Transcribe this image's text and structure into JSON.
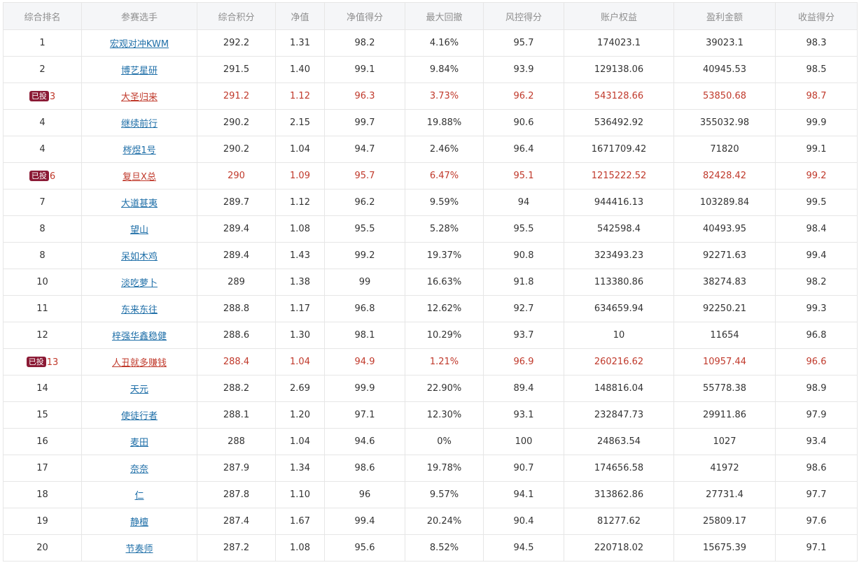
{
  "headers": [
    "综合排名",
    "参赛选手",
    "综合积分",
    "净值",
    "净值得分",
    "最大回撤",
    "风控得分",
    "账户权益",
    "盈利金额",
    "收益得分"
  ],
  "rows": [
    {
      "rank": "1",
      "badge": "",
      "player": "宏观对冲KWM",
      "score": "292.2",
      "nav": "1.31",
      "nav_score": "98.2",
      "drawdown": "4.16%",
      "risk_score": "95.7",
      "equity": "174023.1",
      "profit": "39023.1",
      "return_score": "98.3",
      "highlight": false
    },
    {
      "rank": "2",
      "badge": "",
      "player": "博艺星研",
      "score": "291.5",
      "nav": "1.40",
      "nav_score": "99.1",
      "drawdown": "9.84%",
      "risk_score": "93.9",
      "equity": "129138.06",
      "profit": "40945.53",
      "return_score": "98.5",
      "highlight": false
    },
    {
      "rank": "3",
      "badge": "已投",
      "player": "大圣归来",
      "score": "291.2",
      "nav": "1.12",
      "nav_score": "96.3",
      "drawdown": "3.73%",
      "risk_score": "96.2",
      "equity": "543128.66",
      "profit": "53850.68",
      "return_score": "98.7",
      "highlight": true
    },
    {
      "rank": "4",
      "badge": "",
      "player": "继续前行",
      "score": "290.2",
      "nav": "2.15",
      "nav_score": "99.7",
      "drawdown": "19.88%",
      "risk_score": "90.6",
      "equity": "536492.92",
      "profit": "355032.98",
      "return_score": "99.9",
      "highlight": false
    },
    {
      "rank": "4",
      "badge": "",
      "player": "梣煜1号",
      "score": "290.2",
      "nav": "1.04",
      "nav_score": "94.7",
      "drawdown": "2.46%",
      "risk_score": "96.4",
      "equity": "1671709.42",
      "profit": "71820",
      "return_score": "99.1",
      "highlight": false
    },
    {
      "rank": "6",
      "badge": "已投",
      "player": "复旦X总",
      "score": "290",
      "nav": "1.09",
      "nav_score": "95.7",
      "drawdown": "6.47%",
      "risk_score": "95.1",
      "equity": "1215222.52",
      "profit": "82428.42",
      "return_score": "99.2",
      "highlight": true
    },
    {
      "rank": "7",
      "badge": "",
      "player": "大道甚夷",
      "score": "289.7",
      "nav": "1.12",
      "nav_score": "96.2",
      "drawdown": "9.59%",
      "risk_score": "94",
      "equity": "944416.13",
      "profit": "103289.84",
      "return_score": "99.5",
      "highlight": false
    },
    {
      "rank": "8",
      "badge": "",
      "player": "望山",
      "score": "289.4",
      "nav": "1.08",
      "nav_score": "95.5",
      "drawdown": "5.28%",
      "risk_score": "95.5",
      "equity": "542598.4",
      "profit": "40493.95",
      "return_score": "98.4",
      "highlight": false
    },
    {
      "rank": "8",
      "badge": "",
      "player": "呆如木鸡",
      "score": "289.4",
      "nav": "1.43",
      "nav_score": "99.2",
      "drawdown": "19.37%",
      "risk_score": "90.8",
      "equity": "323493.23",
      "profit": "92271.63",
      "return_score": "99.4",
      "highlight": false
    },
    {
      "rank": "10",
      "badge": "",
      "player": "淡吃萝卜",
      "score": "289",
      "nav": "1.38",
      "nav_score": "99",
      "drawdown": "16.63%",
      "risk_score": "91.8",
      "equity": "113380.86",
      "profit": "38274.83",
      "return_score": "98.2",
      "highlight": false
    },
    {
      "rank": "11",
      "badge": "",
      "player": "东来东往",
      "score": "288.8",
      "nav": "1.17",
      "nav_score": "96.8",
      "drawdown": "12.62%",
      "risk_score": "92.7",
      "equity": "634659.94",
      "profit": "92250.21",
      "return_score": "99.3",
      "highlight": false
    },
    {
      "rank": "12",
      "badge": "",
      "player": "梓强华鑫稳健",
      "score": "288.6",
      "nav": "1.30",
      "nav_score": "98.1",
      "drawdown": "10.29%",
      "risk_score": "93.7",
      "equity": "10",
      "profit": "11654",
      "return_score": "96.8",
      "highlight": false
    },
    {
      "rank": "13",
      "badge": "已投",
      "player": "人丑就多赚钱",
      "score": "288.4",
      "nav": "1.04",
      "nav_score": "94.9",
      "drawdown": "1.21%",
      "risk_score": "96.9",
      "equity": "260216.62",
      "profit": "10957.44",
      "return_score": "96.6",
      "highlight": true
    },
    {
      "rank": "14",
      "badge": "",
      "player": "天元",
      "score": "288.2",
      "nav": "2.69",
      "nav_score": "99.9",
      "drawdown": "22.90%",
      "risk_score": "89.4",
      "equity": "148816.04",
      "profit": "55778.38",
      "return_score": "98.9",
      "highlight": false
    },
    {
      "rank": "15",
      "badge": "",
      "player": "使徒行者",
      "score": "288.1",
      "nav": "1.20",
      "nav_score": "97.1",
      "drawdown": "12.30%",
      "risk_score": "93.1",
      "equity": "232847.73",
      "profit": "29911.86",
      "return_score": "97.9",
      "highlight": false
    },
    {
      "rank": "16",
      "badge": "",
      "player": "麦田",
      "score": "288",
      "nav": "1.04",
      "nav_score": "94.6",
      "drawdown": "0%",
      "risk_score": "100",
      "equity": "24863.54",
      "profit": "1027",
      "return_score": "93.4",
      "highlight": false
    },
    {
      "rank": "17",
      "badge": "",
      "player": "奈奈",
      "score": "287.9",
      "nav": "1.34",
      "nav_score": "98.6",
      "drawdown": "19.78%",
      "risk_score": "90.7",
      "equity": "174656.58",
      "profit": "41972",
      "return_score": "98.6",
      "highlight": false
    },
    {
      "rank": "18",
      "badge": "",
      "player": "仁",
      "score": "287.8",
      "nav": "1.10",
      "nav_score": "96",
      "drawdown": "9.57%",
      "risk_score": "94.1",
      "equity": "313862.86",
      "profit": "27731.4",
      "return_score": "97.7",
      "highlight": false
    },
    {
      "rank": "19",
      "badge": "",
      "player": "静檀",
      "score": "287.4",
      "nav": "1.67",
      "nav_score": "99.4",
      "drawdown": "20.24%",
      "risk_score": "90.4",
      "equity": "81277.62",
      "profit": "25809.17",
      "return_score": "97.6",
      "highlight": false
    },
    {
      "rank": "20",
      "badge": "",
      "player": "节奏师",
      "score": "287.2",
      "nav": "1.08",
      "nav_score": "95.6",
      "drawdown": "8.52%",
      "risk_score": "94.5",
      "equity": "220718.02",
      "profit": "15675.39",
      "return_score": "97.1",
      "highlight": false
    }
  ],
  "colors": {
    "header_bg": "#f5f6f8",
    "header_text": "#8f8f8f",
    "border": "#e6e6e6",
    "link": "#1f6fa8",
    "highlight_text": "#c0392b",
    "badge_bg": "#8b1a35"
  }
}
